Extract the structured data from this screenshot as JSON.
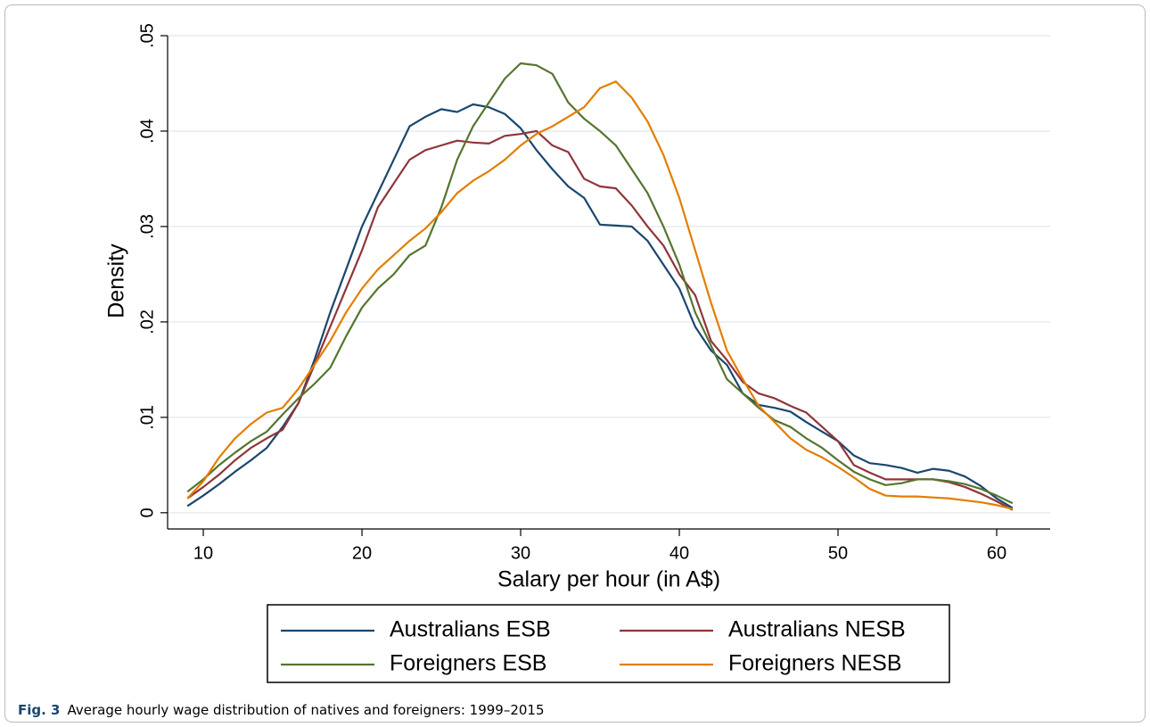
{
  "chart_data": {
    "type": "line",
    "xlabel": "Salary per hour (in A$)",
    "ylabel": "Density",
    "caption_label": "Fig. 3",
    "caption": "Average hourly wage distribution of natives and foreigners: 1999–2015",
    "grid": true,
    "xlim": [
      7.75,
      63.37
    ],
    "ylim": [
      -0.0017,
      0.05
    ],
    "xticks": [
      10,
      20,
      30,
      40,
      50,
      60
    ],
    "yticks": [
      0,
      {
        "value": 0.01,
        "label": ".01"
      },
      {
        "value": 0.02,
        "label": ".02"
      },
      {
        "value": 0.03,
        "label": ".03"
      },
      {
        "value": 0.04,
        "label": ".04"
      },
      {
        "value": 0.05,
        "label": ".05"
      }
    ],
    "x": [
      9,
      10,
      11,
      12,
      13,
      14,
      15,
      16,
      17,
      18,
      19,
      20,
      21,
      22,
      23,
      24,
      25,
      26,
      27,
      28,
      29,
      30,
      31,
      32,
      33,
      34,
      35,
      36,
      37,
      38,
      39,
      40,
      41,
      42,
      43,
      44,
      45,
      46,
      47,
      48,
      49,
      50,
      51,
      52,
      53,
      54,
      55,
      56,
      57,
      58,
      59,
      60,
      61
    ],
    "series": [
      {
        "name": "Australians ESB",
        "color": "#1a476f",
        "values": [
          0.0007,
          0.0018,
          0.003,
          0.0043,
          0.0055,
          0.0068,
          0.009,
          0.0115,
          0.016,
          0.021,
          0.0255,
          0.03,
          0.0335,
          0.037,
          0.0405,
          0.0415,
          0.0423,
          0.042,
          0.0428,
          0.0425,
          0.0418,
          0.0403,
          0.038,
          0.036,
          0.0342,
          0.033,
          0.0302,
          0.0301,
          0.03,
          0.0285,
          0.026,
          0.0235,
          0.0195,
          0.017,
          0.0155,
          0.0125,
          0.0113,
          0.011,
          0.0106,
          0.0095,
          0.0085,
          0.0075,
          0.006,
          0.0052,
          0.005,
          0.0047,
          0.0042,
          0.0046,
          0.0044,
          0.0038,
          0.0028,
          0.0015,
          0.0005
        ]
      },
      {
        "name": "Australians NESB",
        "color": "#90353b",
        "values": [
          0.0015,
          0.0027,
          0.004,
          0.0055,
          0.0068,
          0.0078,
          0.0087,
          0.0115,
          0.0155,
          0.0195,
          0.0235,
          0.0275,
          0.032,
          0.0345,
          0.037,
          0.038,
          0.0385,
          0.039,
          0.0388,
          0.0387,
          0.0395,
          0.0397,
          0.04,
          0.0385,
          0.0378,
          0.035,
          0.0342,
          0.034,
          0.0322,
          0.03,
          0.028,
          0.025,
          0.0228,
          0.018,
          0.016,
          0.0137,
          0.0125,
          0.012,
          0.0112,
          0.0105,
          0.009,
          0.0075,
          0.005,
          0.0042,
          0.0035,
          0.0035,
          0.0035,
          0.0035,
          0.0032,
          0.0027,
          0.002,
          0.0012,
          0.0003
        ]
      },
      {
        "name": "Foreigners ESB",
        "color": "#55752f",
        "values": [
          0.0022,
          0.0035,
          0.005,
          0.0063,
          0.0075,
          0.0085,
          0.0103,
          0.012,
          0.0135,
          0.0152,
          0.0185,
          0.0215,
          0.0235,
          0.025,
          0.027,
          0.028,
          0.032,
          0.037,
          0.0405,
          0.043,
          0.0455,
          0.0471,
          0.0469,
          0.046,
          0.043,
          0.0413,
          0.04,
          0.0385,
          0.036,
          0.0335,
          0.03,
          0.026,
          0.021,
          0.0175,
          0.014,
          0.0125,
          0.011,
          0.0097,
          0.009,
          0.0078,
          0.0068,
          0.0055,
          0.0043,
          0.0035,
          0.0029,
          0.0031,
          0.0035,
          0.0035,
          0.0033,
          0.003,
          0.0025,
          0.0018,
          0.001
        ]
      },
      {
        "name": "Foreigners NESB",
        "color": "#e37e00",
        "values": [
          0.0015,
          0.0033,
          0.0058,
          0.0078,
          0.0093,
          0.0105,
          0.011,
          0.013,
          0.0155,
          0.018,
          0.021,
          0.0235,
          0.0255,
          0.027,
          0.0285,
          0.0298,
          0.0315,
          0.0335,
          0.0348,
          0.0358,
          0.037,
          0.0385,
          0.0397,
          0.0405,
          0.0415,
          0.0425,
          0.0445,
          0.0452,
          0.0435,
          0.041,
          0.0375,
          0.033,
          0.0275,
          0.022,
          0.017,
          0.014,
          0.0112,
          0.0095,
          0.0078,
          0.0066,
          0.0058,
          0.0048,
          0.0037,
          0.0025,
          0.0018,
          0.0017,
          0.0017,
          0.0016,
          0.0015,
          0.0013,
          0.0011,
          0.0008,
          0.0004
        ]
      }
    ]
  }
}
